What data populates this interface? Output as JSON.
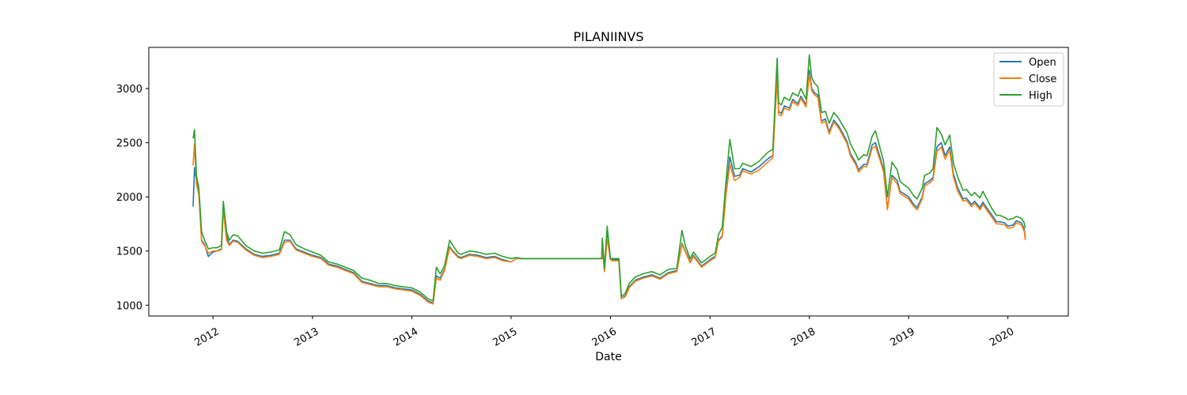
{
  "chart_data": {
    "type": "line",
    "title": "PILANIINVS",
    "xlabel": "Date",
    "ylabel": "",
    "xlim": [
      "2011-05-10",
      "2020-08-10"
    ],
    "ylim": [
      900,
      3380
    ],
    "x_ticks": [
      "2012",
      "2013",
      "2014",
      "2015",
      "2016",
      "2017",
      "2018",
      "2019",
      "2020"
    ],
    "y_ticks": [
      1000,
      1500,
      2000,
      2500,
      3000
    ],
    "legend_position": "top-right",
    "grid": false,
    "colors": {
      "Open": "#1f77b4",
      "Close": "#ff7f0e",
      "High": "#2ca02c"
    },
    "x": [
      "2011-10-20",
      "2011-10-25",
      "2011-11-01",
      "2011-11-10",
      "2011-11-20",
      "2011-12-01",
      "2011-12-15",
      "2012-01-01",
      "2012-01-15",
      "2012-02-01",
      "2012-02-08",
      "2012-02-20",
      "2012-03-01",
      "2012-03-15",
      "2012-04-01",
      "2012-05-01",
      "2012-06-01",
      "2012-07-01",
      "2012-08-01",
      "2012-09-01",
      "2012-09-20",
      "2012-10-10",
      "2012-11-01",
      "2012-12-01",
      "2013-01-01",
      "2013-02-01",
      "2013-03-01",
      "2013-04-01",
      "2013-05-01",
      "2013-06-01",
      "2013-07-01",
      "2013-08-01",
      "2013-09-01",
      "2013-10-01",
      "2013-11-01",
      "2013-12-01",
      "2014-01-01",
      "2014-02-01",
      "2014-03-01",
      "2014-03-20",
      "2014-04-01",
      "2014-04-15",
      "2014-05-01",
      "2014-05-20",
      "2014-06-01",
      "2014-06-20",
      "2014-07-01",
      "2014-08-01",
      "2014-09-01",
      "2014-10-01",
      "2014-11-01",
      "2014-12-01",
      "2015-01-01",
      "2015-01-20",
      "2015-02-10",
      "2015-05-01",
      "2015-08-01",
      "2015-11-01",
      "2015-11-30",
      "2015-12-02",
      "2015-12-10",
      "2015-12-20",
      "2016-01-01",
      "2016-01-10",
      "2016-02-01",
      "2016-02-10",
      "2016-02-25",
      "2016-03-10",
      "2016-04-01",
      "2016-05-01",
      "2016-06-01",
      "2016-07-01",
      "2016-08-01",
      "2016-09-01",
      "2016-09-20",
      "2016-10-01",
      "2016-10-20",
      "2016-11-01",
      "2016-12-01",
      "2017-01-01",
      "2017-01-20",
      "2017-02-01",
      "2017-02-15",
      "2017-03-01",
      "2017-03-15",
      "2017-04-01",
      "2017-04-20",
      "2017-05-01",
      "2017-06-01",
      "2017-07-01",
      "2017-08-01",
      "2017-08-20",
      "2017-09-05",
      "2017-09-10",
      "2017-09-20",
      "2017-10-01",
      "2017-10-20",
      "2017-11-01",
      "2017-11-20",
      "2017-12-01",
      "2017-12-20",
      "2018-01-01",
      "2018-01-10",
      "2018-01-20",
      "2018-02-01",
      "2018-02-15",
      "2018-03-01",
      "2018-03-15",
      "2018-04-01",
      "2018-04-20",
      "2018-05-01",
      "2018-05-20",
      "2018-06-01",
      "2018-06-20",
      "2018-07-01",
      "2018-07-20",
      "2018-08-01",
      "2018-08-20",
      "2018-09-01",
      "2018-09-20",
      "2018-10-01",
      "2018-10-15",
      "2018-11-01",
      "2018-11-20",
      "2018-12-01",
      "2019-01-01",
      "2019-01-20",
      "2019-02-01",
      "2019-02-20",
      "2019-03-01",
      "2019-03-20",
      "2019-04-01",
      "2019-04-15",
      "2019-05-01",
      "2019-05-15",
      "2019-06-01",
      "2019-06-15",
      "2019-07-01",
      "2019-07-20",
      "2019-08-01",
      "2019-08-20",
      "2019-09-01",
      "2019-09-20",
      "2019-10-01",
      "2019-10-20",
      "2019-11-01",
      "2019-11-20",
      "2019-12-01",
      "2019-12-20",
      "2020-01-01",
      "2020-01-20",
      "2020-02-01",
      "2020-02-20",
      "2020-03-01",
      "2020-03-05"
    ],
    "series": [
      {
        "name": "Open",
        "values": [
          1910,
          2270,
          2150,
          2050,
          1600,
          1560,
          1450,
          1490,
          1500,
          1520,
          1900,
          1640,
          1560,
          1600,
          1590,
          1520,
          1470,
          1450,
          1460,
          1480,
          1600,
          1600,
          1520,
          1490,
          1460,
          1440,
          1380,
          1360,
          1330,
          1300,
          1220,
          1200,
          1180,
          1180,
          1160,
          1150,
          1140,
          1100,
          1040,
          1020,
          1270,
          1250,
          1330,
          1540,
          1500,
          1450,
          1440,
          1470,
          1460,
          1440,
          1450,
          1420,
          1400,
          1430,
          1430,
          1430,
          1430,
          1430,
          1430,
          1570,
          1320,
          1650,
          1420,
          1420,
          1420,
          1060,
          1090,
          1170,
          1230,
          1260,
          1280,
          1250,
          1300,
          1320,
          1570,
          1510,
          1400,
          1460,
          1360,
          1420,
          1450,
          1600,
          1640,
          2040,
          2370,
          2190,
          2200,
          2260,
          2230,
          2280,
          2350,
          2380,
          3150,
          2790,
          2770,
          2840,
          2820,
          2900,
          2860,
          2930,
          2850,
          3170,
          3000,
          2960,
          2940,
          2700,
          2720,
          2600,
          2710,
          2650,
          2600,
          2510,
          2400,
          2320,
          2250,
          2300,
          2300,
          2480,
          2500,
          2350,
          2250,
          1890,
          2200,
          2150,
          2050,
          2000,
          1930,
          1900,
          2000,
          2120,
          2150,
          2180,
          2460,
          2500,
          2380,
          2460,
          2210,
          2080,
          1980,
          1990,
          1930,
          1960,
          1900,
          1950,
          1880,
          1840,
          1770,
          1770,
          1760,
          1730,
          1740,
          1780,
          1760,
          1700,
          1620
        ]
      },
      {
        "name": "Close",
        "values": [
          2290,
          2490,
          2120,
          2020,
          1590,
          1550,
          1480,
          1500,
          1500,
          1510,
          1880,
          1600,
          1550,
          1590,
          1580,
          1510,
          1460,
          1440,
          1450,
          1470,
          1580,
          1590,
          1510,
          1480,
          1450,
          1430,
          1370,
          1350,
          1320,
          1290,
          1210,
          1190,
          1170,
          1170,
          1150,
          1140,
          1130,
          1090,
          1030,
          1010,
          1250,
          1230,
          1320,
          1530,
          1490,
          1440,
          1430,
          1460,
          1450,
          1430,
          1440,
          1410,
          1400,
          1430,
          1430,
          1430,
          1430,
          1430,
          1430,
          1540,
          1310,
          1620,
          1420,
          1410,
          1410,
          1060,
          1080,
          1160,
          1220,
          1250,
          1270,
          1240,
          1290,
          1310,
          1560,
          1500,
          1390,
          1450,
          1350,
          1410,
          1440,
          1590,
          1630,
          2020,
          2300,
          2150,
          2180,
          2240,
          2210,
          2250,
          2320,
          2360,
          3100,
          2760,
          2750,
          2820,
          2800,
          2880,
          2840,
          2910,
          2830,
          3130,
          2980,
          2940,
          2920,
          2680,
          2700,
          2580,
          2690,
          2630,
          2580,
          2490,
          2380,
          2300,
          2230,
          2280,
          2280,
          2450,
          2470,
          2320,
          2230,
          1880,
          2180,
          2120,
          2030,
          1980,
          1910,
          1880,
          1980,
          2100,
          2130,
          2160,
          2420,
          2460,
          2350,
          2430,
          2180,
          2050,
          1960,
          1970,
          1910,
          1940,
          1880,
          1930,
          1860,
          1820,
          1750,
          1750,
          1740,
          1710,
          1720,
          1760,
          1740,
          1680,
          1600
        ]
      },
      {
        "name": "High",
        "values": [
          2540,
          2620,
          2200,
          2080,
          1680,
          1600,
          1520,
          1530,
          1530,
          1550,
          1960,
          1680,
          1600,
          1650,
          1640,
          1550,
          1500,
          1480,
          1490,
          1510,
          1680,
          1650,
          1560,
          1520,
          1490,
          1460,
          1400,
          1380,
          1350,
          1320,
          1250,
          1230,
          1200,
          1200,
          1180,
          1170,
          1160,
          1120,
          1060,
          1040,
          1350,
          1290,
          1360,
          1600,
          1550,
          1480,
          1470,
          1500,
          1490,
          1470,
          1480,
          1450,
          1430,
          1440,
          1430,
          1430,
          1430,
          1430,
          1430,
          1620,
          1340,
          1730,
          1430,
          1430,
          1430,
          1080,
          1110,
          1200,
          1260,
          1290,
          1310,
          1280,
          1330,
          1340,
          1690,
          1560,
          1430,
          1490,
          1390,
          1450,
          1480,
          1650,
          1720,
          2150,
          2530,
          2260,
          2260,
          2310,
          2280,
          2330,
          2410,
          2440,
          3280,
          2870,
          2850,
          2920,
          2890,
          2960,
          2930,
          3000,
          2900,
          3310,
          3100,
          3050,
          3020,
          2780,
          2790,
          2680,
          2780,
          2720,
          2670,
          2590,
          2490,
          2400,
          2340,
          2390,
          2380,
          2560,
          2610,
          2430,
          2330,
          2000,
          2320,
          2250,
          2140,
          2080,
          2010,
          1980,
          2080,
          2200,
          2220,
          2260,
          2640,
          2580,
          2480,
          2570,
          2310,
          2180,
          2060,
          2070,
          2010,
          2040,
          1990,
          2050,
          1960,
          1900,
          1830,
          1830,
          1810,
          1790,
          1800,
          1820,
          1800,
          1760,
          1710
        ]
      }
    ]
  }
}
